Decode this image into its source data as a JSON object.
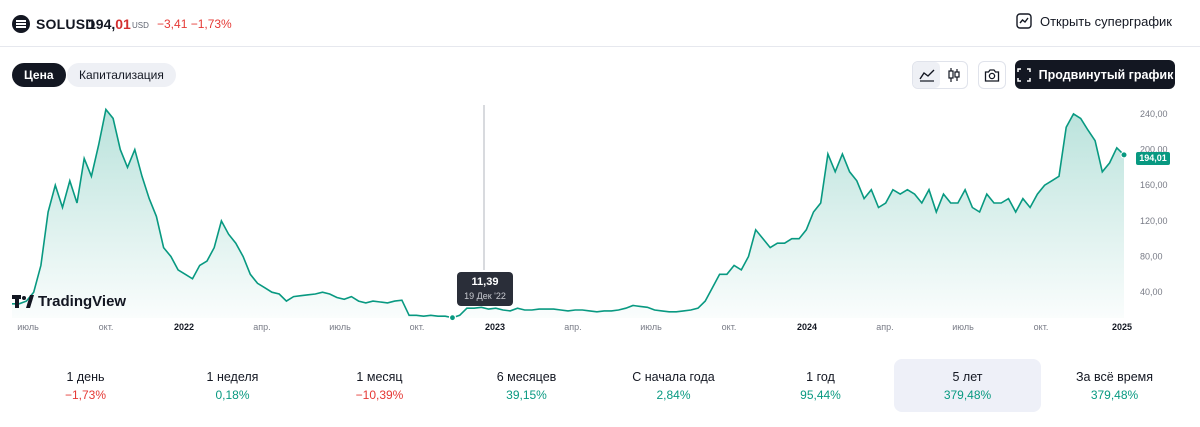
{
  "header": {
    "symbol": "SOLUSD",
    "price_int": "194,",
    "price_dec": "01",
    "currency": "USD",
    "change": "−3,41 −1,73%",
    "super_chart_label": "Открыть суперграфик"
  },
  "toolbar": {
    "tabs": [
      {
        "label": "Цена",
        "active": true
      },
      {
        "label": "Капитализация",
        "active": false
      }
    ],
    "chart_type_icons": [
      "area-chart-icon",
      "candles-icon"
    ],
    "screenshot_icon": "camera-icon",
    "advanced_label": "Продвинутый график"
  },
  "chart_data": {
    "type": "area",
    "x_ticks": [
      "июль",
      "окт.",
      "2022",
      "апр.",
      "июль",
      "окт.",
      "2023",
      "апр.",
      "июль",
      "окт.",
      "2024",
      "апр.",
      "июль",
      "окт.",
      "2025"
    ],
    "y_ticks": [
      "240,00",
      "200,00",
      "160,00",
      "120,00",
      "80,00",
      "40,00"
    ],
    "ylim": [
      20,
      250
    ],
    "grid": false,
    "line_color": "#089981",
    "fill_color": "#089981",
    "last_value_label": "194,01",
    "values": [
      27,
      27,
      30,
      40,
      70,
      130,
      160,
      135,
      165,
      140,
      190,
      170,
      205,
      245,
      235,
      200,
      180,
      200,
      170,
      145,
      125,
      90,
      80,
      65,
      60,
      55,
      70,
      75,
      90,
      120,
      105,
      95,
      80,
      60,
      50,
      45,
      40,
      38,
      30,
      35,
      36,
      37,
      38,
      40,
      38,
      34,
      32,
      35,
      30,
      28,
      30,
      29,
      28,
      30,
      31,
      14,
      14,
      13,
      14,
      13,
      13,
      11.4,
      14,
      22,
      22,
      23,
      21,
      22,
      20,
      19,
      22,
      20,
      20,
      21,
      21,
      21,
      20,
      19,
      20,
      20,
      19,
      18,
      19,
      19,
      20,
      22,
      25,
      24,
      23,
      20,
      19,
      18,
      18,
      19,
      20,
      22,
      30,
      45,
      60,
      60,
      70,
      65,
      80,
      110,
      100,
      90,
      95,
      95,
      100,
      100,
      110,
      130,
      140,
      195,
      175,
      195,
      175,
      165,
      145,
      155,
      135,
      140,
      155,
      150,
      155,
      150,
      140,
      155,
      130,
      150,
      140,
      140,
      155,
      135,
      130,
      150,
      140,
      140,
      145,
      130,
      145,
      135,
      150,
      160,
      165,
      170,
      225,
      240,
      235,
      222,
      210,
      175,
      185,
      202,
      194
    ],
    "tooltip": {
      "value": "11,39",
      "date": "19 Дек '22"
    }
  },
  "brand": {
    "name": "TradingView",
    "mark": "TV"
  },
  "periods": [
    {
      "label": "1 день",
      "value": "−1,73%",
      "sign": "neg",
      "active": false
    },
    {
      "label": "1 неделя",
      "value": "0,18%",
      "sign": "pos",
      "active": false
    },
    {
      "label": "1 месяц",
      "value": "−10,39%",
      "sign": "neg",
      "active": false
    },
    {
      "label": "6 месяцев",
      "value": "39,15%",
      "sign": "pos",
      "active": false
    },
    {
      "label": "С начала года",
      "value": "2,84%",
      "sign": "pos",
      "active": false
    },
    {
      "label": "1 год",
      "value": "95,44%",
      "sign": "pos",
      "active": false
    },
    {
      "label": "5 лет",
      "value": "379,48%",
      "sign": "pos",
      "active": true
    },
    {
      "label": "За всё время",
      "value": "379,48%",
      "sign": "pos",
      "active": false
    }
  ]
}
